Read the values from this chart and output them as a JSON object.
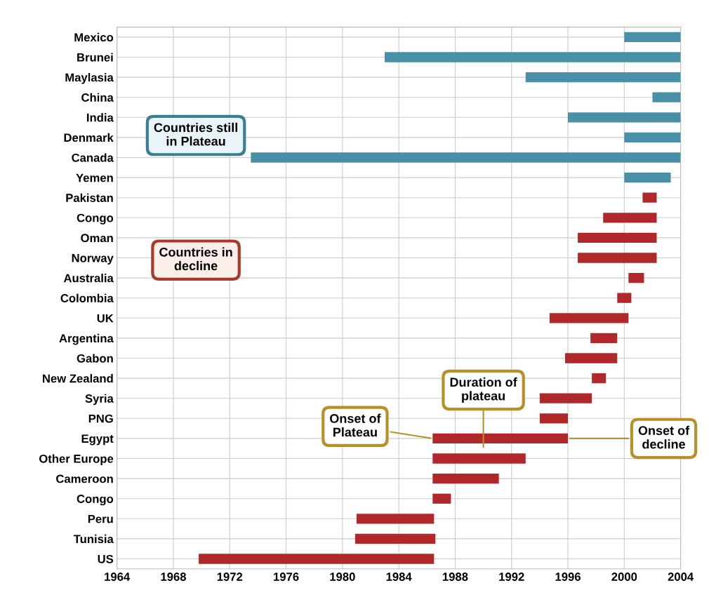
{
  "chart_data": {
    "type": "bar",
    "orientation": "horizontal",
    "categories": [
      "Mexico",
      "Brunei",
      "Maylasia",
      "China",
      "India",
      "Denmark",
      "Canada",
      "Yemen",
      "Pakistan",
      "Congo",
      "Oman",
      "Norway",
      "Australia",
      "Colombia",
      "UK",
      "Argentina",
      "Gabon",
      "New Zealand",
      "Syria",
      "PNG",
      "Egypt",
      "Other Europe",
      "Cameroon",
      "Congo",
      "Peru",
      "Tunisia",
      "US"
    ],
    "base": [
      2000,
      1983,
      1993,
      2002,
      1996,
      2000,
      1973.5,
      2000,
      2001.3,
      1998.5,
      1996.7,
      1996.7,
      2000.3,
      1999.5,
      1994.7,
      1997.6,
      1995.8,
      1997.7,
      1994,
      1994,
      1986.4,
      1986.4,
      1986.4,
      1986.4,
      1981,
      1980.9,
      1969.8
    ],
    "values": [
      4,
      21,
      11,
      2,
      8,
      4,
      30.5,
      3.3,
      1,
      3.8,
      5.6,
      5.6,
      1.1,
      1,
      5.6,
      1.9,
      3.7,
      1,
      3.7,
      2,
      9.6,
      6.6,
      4.7,
      1.3,
      5.5,
      5.7,
      16.7
    ],
    "colors": [
      "#4a8fa8",
      "#4a8fa8",
      "#4a8fa8",
      "#4a8fa8",
      "#4a8fa8",
      "#4a8fa8",
      "#4a8fa8",
      "#4a8fa8",
      "#b0282a",
      "#b0282a",
      "#b0282a",
      "#b0282a",
      "#b0282a",
      "#b0282a",
      "#b0282a",
      "#b0282a",
      "#b0282a",
      "#b0282a",
      "#b0282a",
      "#b0282a",
      "#b0282a",
      "#b0282a",
      "#b0282a",
      "#b0282a",
      "#b0282a",
      "#b0282a",
      "#b0282a"
    ],
    "xlim": [
      1964,
      2004
    ],
    "xticks": [
      1964,
      1968,
      1972,
      1976,
      1980,
      1984,
      1988,
      1992,
      1996,
      2000,
      2004
    ],
    "grid": true,
    "annotations": [
      {
        "text": "Countries still\nin Plateau"
      },
      {
        "text": "Countries in\ndecline"
      },
      "Duration of\nplateau",
      {
        "text": "Onset of\nPlateau",
        "x": 1986.4,
        "y": "Egypt"
      },
      {
        "text": "Onset of\ndecline",
        "x": 1996,
        "y": "Egypt"
      }
    ]
  }
}
